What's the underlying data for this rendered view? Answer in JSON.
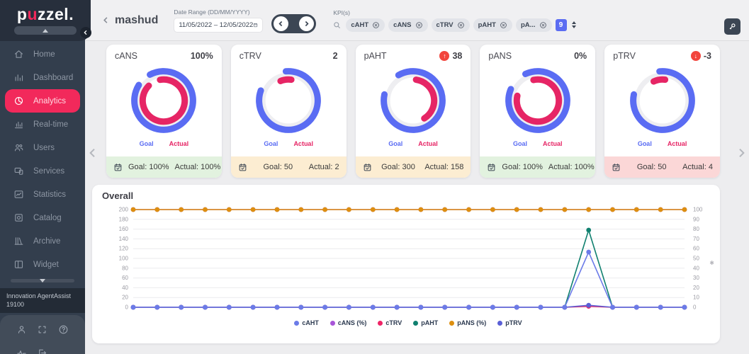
{
  "brand": {
    "logo_prefix": "p",
    "logo_accent": "u",
    "logo_suffix": "zzel.",
    "accent_color": "#f2295b"
  },
  "topbar": {
    "back_title": "mashud",
    "date_range": {
      "label": "Date Range (DD/MM/YYYY)",
      "value": "11/05/2022 – 12/05/2022"
    },
    "kpi_filter": {
      "label": "KPI(s)",
      "tags": [
        "cAHT",
        "cANS",
        "cTRV",
        "pAHT",
        "pA..."
      ],
      "count": "9"
    }
  },
  "sidebar": {
    "items": [
      {
        "label": "Home",
        "icon": "home-icon",
        "active": false
      },
      {
        "label": "Dashboard",
        "icon": "dashboard-icon",
        "active": false
      },
      {
        "label": "Analytics",
        "icon": "analytics-icon",
        "active": true
      },
      {
        "label": "Real-time",
        "icon": "realtime-icon",
        "active": false
      },
      {
        "label": "Users",
        "icon": "users-icon",
        "active": false
      },
      {
        "label": "Services",
        "icon": "services-icon",
        "active": false
      },
      {
        "label": "Statistics",
        "icon": "statistics-icon",
        "active": false
      },
      {
        "label": "Catalog",
        "icon": "catalog-icon",
        "active": false
      },
      {
        "label": "Archive",
        "icon": "archive-icon",
        "active": false
      },
      {
        "label": "Widget",
        "icon": "widget-icon",
        "active": false
      }
    ],
    "account": {
      "line1": "Innovation AgentAssist",
      "line2": "19100"
    }
  },
  "cards": {
    "goal_label": "Goal",
    "actual_label": "Actual",
    "colors": {
      "goal": "#5a6cf3",
      "actual": "#e62565",
      "track": "#eeeef1",
      "badge": "#f2453d"
    },
    "items": [
      {
        "title": "cANS",
        "value": "100%",
        "trend": null,
        "footer_tone": "green",
        "goal_text": "Goal: 100%",
        "actual_text": "Actual: 100%",
        "goal_arc": {
          "start": -28,
          "sweep": 330
        },
        "actual_arc": {
          "start": -10,
          "sweep": 325
        }
      },
      {
        "title": "cTRV",
        "value": "2",
        "trend": null,
        "footer_tone": "amber",
        "goal_text": "Goal: 50",
        "actual_text": "Actual: 2",
        "goal_arc": {
          "start": -5,
          "sweep": 295
        },
        "actual_arc": {
          "start": -22,
          "sweep": 30
        }
      },
      {
        "title": "pAHT",
        "value": "38",
        "trend": "up",
        "footer_tone": "amber",
        "goal_text": "Goal: 300",
        "actual_text": "Actual: 158",
        "goal_arc": {
          "start": -30,
          "sweep": 312
        },
        "actual_arc": {
          "start": 8,
          "sweep": 140
        }
      },
      {
        "title": "pANS",
        "value": "0%",
        "trend": null,
        "footer_tone": "green",
        "goal_text": "Goal: 100%",
        "actual_text": "Actual: 100%",
        "goal_arc": {
          "start": -25,
          "sweep": 318
        },
        "actual_arc": {
          "start": -12,
          "sweep": 295
        }
      },
      {
        "title": "pTRV",
        "value": "-3",
        "trend": "down",
        "footer_tone": "red",
        "goal_text": "Goal: 50",
        "actual_text": "Actual: 4",
        "goal_arc": {
          "start": -6,
          "sweep": 288
        },
        "actual_arc": {
          "start": -25,
          "sweep": 32
        }
      }
    ]
  },
  "chart_data": {
    "type": "line",
    "title": "Overall",
    "x": [
      1,
      2,
      3,
      4,
      5,
      6,
      7,
      8,
      9,
      10,
      11,
      12,
      13,
      14,
      15,
      16,
      17,
      18,
      19,
      20,
      21,
      22,
      23,
      24
    ],
    "x_labels_visible": false,
    "grid": true,
    "legend_position": "bottom",
    "axes": {
      "left": {
        "min": 0,
        "max": 200,
        "step": 20
      },
      "right": {
        "min": 0,
        "max": 100,
        "step": 10
      }
    },
    "series": [
      {
        "name": "cAHT",
        "color": "#6b7be8",
        "axis": "left",
        "values": [
          0,
          0,
          0,
          0,
          0,
          0,
          0,
          0,
          0,
          0,
          0,
          0,
          0,
          0,
          0,
          0,
          0,
          0,
          0,
          113,
          0,
          0,
          0,
          0
        ]
      },
      {
        "name": "cANS (%)",
        "color": "#a855d8",
        "axis": "right",
        "values": [
          100,
          100,
          100,
          100,
          100,
          100,
          100,
          100,
          100,
          100,
          100,
          100,
          100,
          100,
          100,
          100,
          100,
          100,
          100,
          100,
          100,
          100,
          100,
          100
        ]
      },
      {
        "name": "cTRV",
        "color": "#ef2466",
        "axis": "left",
        "values": [
          0,
          0,
          0,
          0,
          0,
          0,
          0,
          0,
          0,
          0,
          0,
          0,
          0,
          0,
          0,
          0,
          0,
          0,
          0,
          2,
          0,
          0,
          0,
          0
        ]
      },
      {
        "name": "pAHT",
        "color": "#10806f",
        "axis": "left",
        "values": [
          0,
          0,
          0,
          0,
          0,
          0,
          0,
          0,
          0,
          0,
          0,
          0,
          0,
          0,
          0,
          0,
          0,
          0,
          0,
          158,
          0,
          0,
          0,
          0
        ]
      },
      {
        "name": "pANS (%)",
        "color": "#dd8f10",
        "axis": "right",
        "values": [
          100,
          100,
          100,
          100,
          100,
          100,
          100,
          100,
          100,
          100,
          100,
          100,
          100,
          100,
          100,
          100,
          100,
          100,
          100,
          100,
          100,
          100,
          100,
          100
        ]
      },
      {
        "name": "pTRV",
        "color": "#5a5fd6",
        "axis": "left",
        "values": [
          0,
          0,
          0,
          0,
          0,
          0,
          0,
          0,
          0,
          0,
          0,
          0,
          0,
          0,
          0,
          0,
          0,
          0,
          0,
          4,
          0,
          0,
          0,
          0
        ]
      }
    ]
  }
}
